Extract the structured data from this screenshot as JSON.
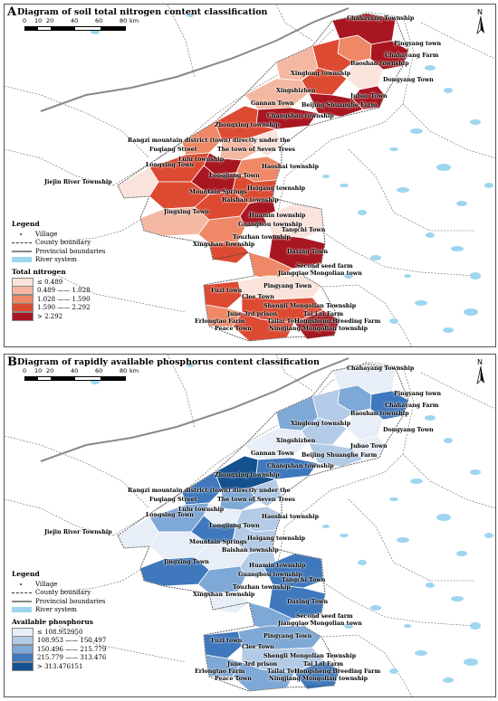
{
  "maps": {
    "a": {
      "letter": "A",
      "title": "Diagram of soil total nitrogen content classification",
      "legend_title": "Total nitrogen",
      "classes": [
        {
          "label": "≤ 0.489",
          "color": "#f9e3da"
        },
        {
          "label": "0.489 —— 1.028",
          "color": "#f4b8a2"
        },
        {
          "label": "1.028 —— 1.590",
          "color": "#ee8866"
        },
        {
          "label": "1.590 —— 2.292",
          "color": "#dc4a32"
        },
        {
          "label": "> 2.292",
          "color": "#a81721"
        }
      ]
    },
    "b": {
      "letter": "B",
      "title": "Diagram of rapidly available phosphorus content classification",
      "legend_title": "Available phosphorus",
      "classes": [
        {
          "label": "≤ 108.952950",
          "color": "#e8eef7"
        },
        {
          "label": "108.953 —— 150.497",
          "color": "#b3cbe6"
        },
        {
          "label": "150.496 —— 215.779",
          "color": "#7ea8d6"
        },
        {
          "label": "215.779 —— 313.476",
          "color": "#3f78bc"
        },
        {
          "label": "> 313.476151",
          "color": "#15508f"
        }
      ]
    }
  },
  "scale": {
    "ticks": [
      "0",
      "10",
      "20",
      "40",
      "60",
      "80"
    ],
    "unit": "km"
  },
  "north_label": "N",
  "legend": {
    "heading": "Legend",
    "village": "Village",
    "county_boundary": "County boundary",
    "provincial_boundaries": "Provincial boundaries",
    "river_system": "River system"
  },
  "places_a": [
    "Chahayang Township",
    "Pingyang town",
    "Chahayang Farm",
    "Baoshan township",
    "Xinglong township",
    "Dongyang Town",
    "Xingshizhen",
    "Gannan Town",
    "Jubao Town",
    "Beijing Shuanghe Farm",
    "Changshan township",
    "Zhongxing township",
    "Rangzi mountain district (town) directly under the",
    "Fuqiang Street",
    "The town of Seven Trees",
    "Lulu township",
    "Longxing Town",
    "Haoshai township",
    "Longjiang Town",
    "Jiejin River Township",
    "Mountain Springs",
    "Heigang township",
    "Baishan township",
    "Jingxing Town",
    "Huamin township",
    "Guanghou township",
    "Tangchi Town",
    "Touzhan township",
    "Xingshan Township",
    "Daxing Town",
    "Second seed farm",
    "Jiangqiao Mongolian town",
    "Pingyang Town",
    "Fuzi town",
    "Clee Town",
    "Shengli Mongolian Township",
    "June 3rd prison",
    "Tai Lai Farm",
    "Erlongtao Farm",
    "Tailai Town",
    "Hongsheng Breeding Farm",
    "Peace Town",
    "Ningjiang Mongolian township"
  ],
  "places_b": [
    "Chahayang Township",
    "Pingyang town",
    "Chahayang Farm",
    "Baoshan township",
    "Xinglong township",
    "Dongyang Town",
    "Xingshizhen",
    "Gannan Town",
    "Jubao Town",
    "Beijing Shuanghe Farm",
    "Changshan township",
    "Zhongxing township",
    "Rangzi mountain district (town) directly under the",
    "Fuqiang Street",
    "The town of Seven Trees",
    "Lulu township",
    "Longsing Town",
    "Haoshai township",
    "Longjiang Town",
    "Jiejin River Township",
    "Mountain Springs",
    "Heigang township",
    "Baishan township",
    "Jingxing Town",
    "Huamin township",
    "Guanghou township",
    "Tangchi Town",
    "Touzhan township",
    "Xingshan Township",
    "Daxing Town",
    "Second seed farm",
    "Jiangqiao Mongolian town",
    "Pingyang Town",
    "Fuzi town",
    "Clee Town",
    "Shengli Mongolian Township",
    "June 3rd prison",
    "Tai Lai Farm",
    "Erlongtao Farm",
    "Tailai Town",
    "Hongsheng Breeding Farm",
    "Peace Town",
    "Ningjiang Mongolian township"
  ],
  "region_class_a": [
    4,
    4,
    2,
    3,
    1,
    0,
    3,
    1,
    4,
    4,
    4,
    3,
    2,
    1,
    0,
    4,
    3,
    2,
    4,
    0,
    3,
    3,
    3,
    1,
    4,
    2,
    0,
    3,
    4,
    2,
    0,
    3,
    3,
    2,
    3,
    4
  ],
  "region_class_b": [
    0,
    3,
    2,
    1,
    2,
    0,
    1,
    0,
    0,
    1,
    3,
    4,
    3,
    2,
    1,
    0,
    2,
    1,
    3,
    0,
    0,
    1,
    0,
    3,
    1,
    2,
    3,
    0,
    3,
    2,
    2,
    3,
    1,
    2,
    2,
    3
  ]
}
